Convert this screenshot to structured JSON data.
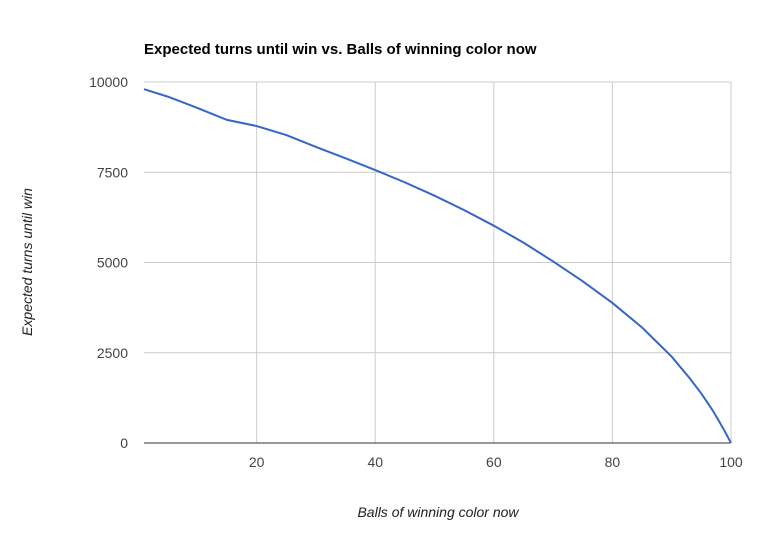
{
  "chart_data": {
    "type": "line",
    "title": "Expected turns until win vs. Balls of winning color now",
    "xlabel": "Balls of winning color now",
    "ylabel": "Expected turns until win",
    "xlim": [
      1,
      100
    ],
    "ylim": [
      0,
      10000
    ],
    "x_ticks": [
      20,
      40,
      60,
      80,
      100
    ],
    "y_ticks": [
      0,
      2500,
      5000,
      7500,
      10000
    ],
    "grid": true,
    "legend": "none",
    "series": [
      {
        "color": "#3366cc",
        "x": [
          1,
          5,
          10,
          15,
          20,
          25,
          30,
          35,
          40,
          45,
          50,
          55,
          60,
          65,
          70,
          75,
          80,
          85,
          90,
          93,
          95,
          97,
          98,
          99,
          100
        ],
        "y": [
          9801,
          9595,
          9281,
          8950,
          8780,
          8530,
          8200,
          7885,
          7560,
          7220,
          6850,
          6450,
          6020,
          5550,
          5030,
          4480,
          3880,
          3200,
          2390,
          1800,
          1370,
          880,
          600,
          310,
          0
        ]
      }
    ]
  }
}
